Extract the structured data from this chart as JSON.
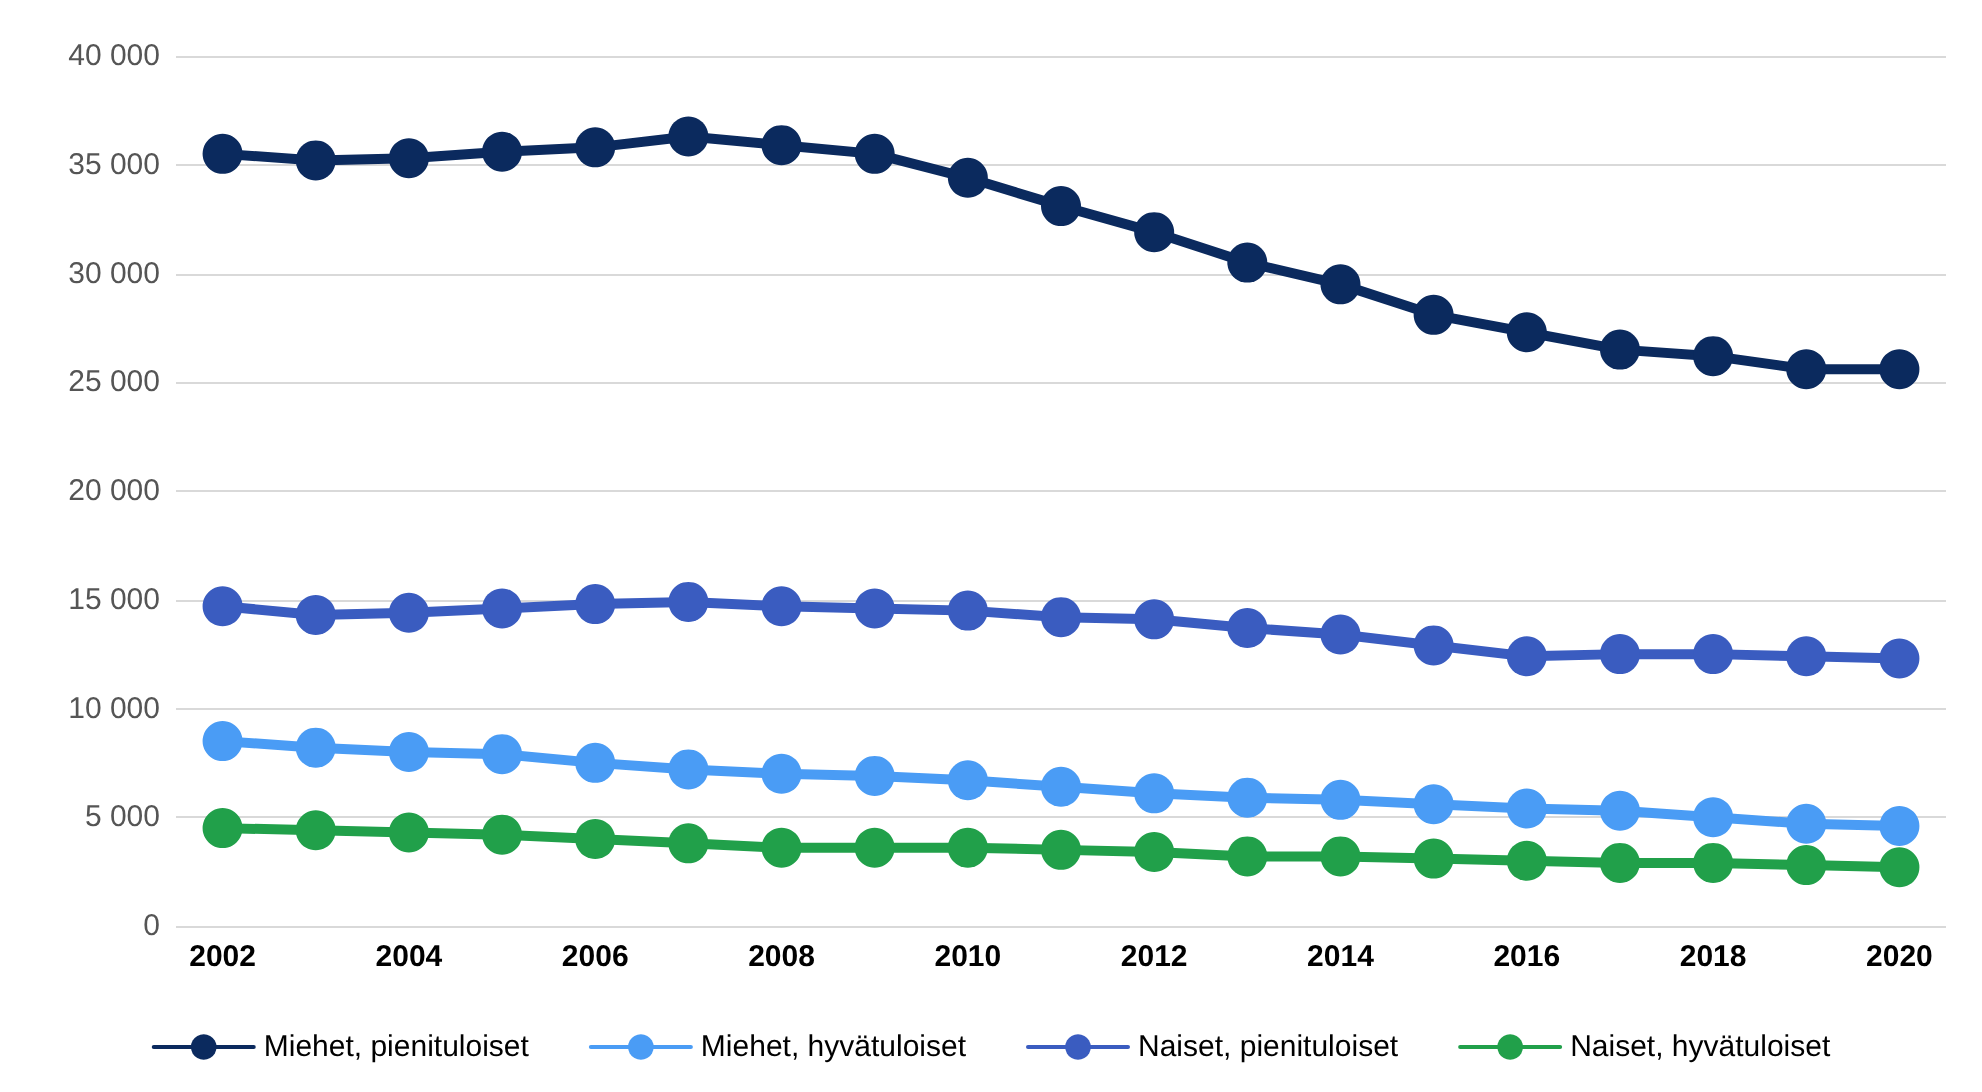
{
  "chart_data": {
    "type": "line",
    "categories": [
      "2002",
      null,
      "2004",
      null,
      "2006",
      null,
      "2008",
      null,
      "2010",
      null,
      "2012",
      null,
      "2014",
      null,
      "2016",
      null,
      "2018",
      null,
      "2020"
    ],
    "series": [
      {
        "name": "Miehet, pienituloiset",
        "color": "#0b2a5e",
        "values": [
          35500,
          35200,
          35300,
          35600,
          35800,
          36300,
          35900,
          35500,
          34400,
          33100,
          31900,
          30500,
          29500,
          28100,
          27300,
          26500,
          26200,
          25600,
          25600
        ]
      },
      {
        "name": "Miehet, hyvätuloiset",
        "color": "#4a9cf5",
        "values": [
          8500,
          8200,
          8000,
          7900,
          7500,
          7200,
          7000,
          6900,
          6700,
          6400,
          6100,
          5900,
          5800,
          5600,
          5400,
          5300,
          5000,
          4700,
          4600
        ]
      },
      {
        "name": "Naiset, pienituloiset",
        "color": "#3a5cc0",
        "values": [
          14700,
          14300,
          14400,
          14600,
          14800,
          14900,
          14700,
          14600,
          14500,
          14200,
          14100,
          13700,
          13400,
          12900,
          12400,
          12500,
          12500,
          12400,
          12300
        ]
      },
      {
        "name": "Naiset, hyvätuloiset",
        "color": "#21a04a",
        "values": [
          4500,
          4400,
          4300,
          4200,
          4000,
          3800,
          3600,
          3600,
          3600,
          3500,
          3400,
          3200,
          3200,
          3100,
          3000,
          2900,
          2900,
          2800,
          2700
        ]
      }
    ],
    "ylim": [
      0,
      40000
    ],
    "yticks": [
      0,
      {
        "value": 5000,
        "label": "5 000"
      },
      {
        "value": 10000,
        "label": "10 000"
      },
      {
        "value": 15000,
        "label": "15 000"
      },
      {
        "value": 20000,
        "label": "20 000"
      },
      {
        "value": 25000,
        "label": "25 000"
      },
      {
        "value": 30000,
        "label": "30 000"
      },
      {
        "value": 35000,
        "label": "35 000"
      },
      {
        "value": 40000,
        "label": "40 000"
      }
    ],
    "grid": "y",
    "legend": "bottom",
    "marker": "circle",
    "line_style": "solid"
  }
}
